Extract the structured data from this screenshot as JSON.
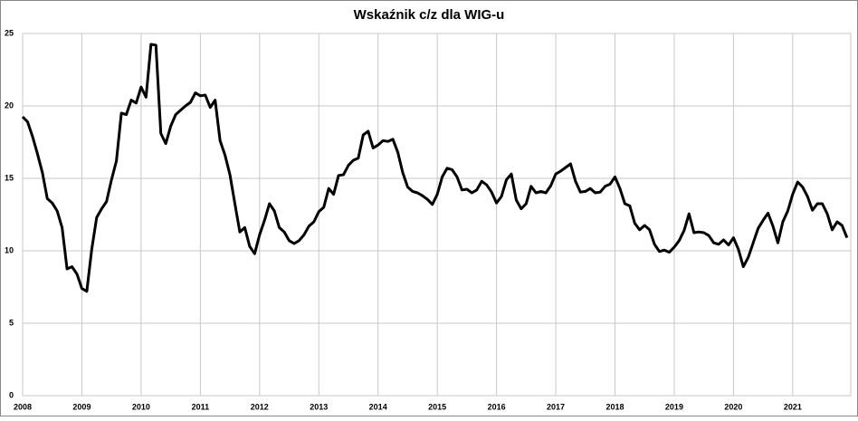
{
  "chart_data": {
    "type": "line",
    "title": "Wskaźnik c/z dla WIG-u",
    "categories": [
      "2008",
      null,
      null,
      null,
      null,
      null,
      null,
      null,
      null,
      null,
      null,
      null,
      "2009",
      null,
      null,
      null,
      null,
      null,
      null,
      null,
      null,
      null,
      null,
      null,
      "2010",
      null,
      null,
      null,
      null,
      null,
      null,
      null,
      null,
      null,
      null,
      null,
      "2011",
      null,
      null,
      null,
      null,
      null,
      null,
      null,
      null,
      null,
      null,
      null,
      "2012",
      null,
      null,
      null,
      null,
      null,
      null,
      null,
      null,
      null,
      null,
      null,
      "2013",
      null,
      null,
      null,
      null,
      null,
      null,
      null,
      null,
      null,
      null,
      null,
      "2014",
      null,
      null,
      null,
      null,
      null,
      null,
      null,
      null,
      null,
      null,
      null,
      "2015",
      null,
      null,
      null,
      null,
      null,
      null,
      null,
      null,
      null,
      null,
      null,
      "2016",
      null,
      null,
      null,
      null,
      null,
      null,
      null,
      null,
      null,
      null,
      null,
      "2017",
      null,
      null,
      null,
      null,
      null,
      null,
      null,
      null,
      null,
      null,
      null,
      "2018",
      null,
      null,
      null,
      null,
      null,
      null,
      null,
      null,
      null,
      null,
      null,
      "2019",
      null,
      null,
      null,
      null,
      null,
      null,
      null,
      null,
      null,
      null,
      null,
      "2020",
      null,
      null,
      null,
      null,
      null,
      null,
      null,
      null,
      null,
      null,
      null,
      "2021",
      null,
      null,
      null,
      null,
      null,
      null,
      null,
      null,
      null,
      null,
      null
    ],
    "values": [
      19.25,
      18.9,
      17.9,
      16.7,
      15.4,
      13.6,
      13.3,
      12.75,
      11.6,
      8.75,
      8.9,
      8.4,
      7.4,
      7.2,
      10.1,
      12.3,
      12.9,
      13.4,
      14.9,
      16.2,
      19.5,
      19.4,
      20.4,
      20.2,
      21.3,
      20.6,
      24.25,
      24.2,
      18.1,
      17.4,
      18.6,
      19.4,
      19.7,
      20.0,
      20.25,
      20.9,
      20.7,
      20.75,
      19.9,
      20.4,
      17.6,
      16.6,
      15.25,
      13.25,
      11.3,
      11.6,
      10.3,
      9.8,
      11.1,
      12.1,
      13.25,
      12.75,
      11.6,
      11.3,
      10.7,
      10.5,
      10.7,
      11.1,
      11.7,
      12.0,
      12.7,
      13.0,
      14.3,
      13.9,
      15.2,
      15.25,
      15.9,
      16.25,
      16.4,
      18.0,
      18.25,
      17.1,
      17.3,
      17.6,
      17.55,
      17.7,
      16.8,
      15.4,
      14.4,
      14.1,
      14.0,
      13.8,
      13.55,
      13.2,
      13.9,
      15.1,
      15.7,
      15.6,
      15.1,
      14.2,
      14.25,
      14.0,
      14.2,
      14.8,
      14.55,
      14.05,
      13.3,
      13.75,
      14.9,
      15.3,
      13.5,
      12.9,
      13.25,
      14.45,
      14.0,
      14.1,
      14.0,
      14.5,
      15.3,
      15.5,
      15.75,
      16.0,
      14.8,
      14.05,
      14.1,
      14.3,
      14.0,
      14.05,
      14.45,
      14.6,
      15.1,
      14.3,
      13.25,
      13.1,
      11.9,
      11.45,
      11.75,
      11.45,
      10.45,
      9.95,
      10.05,
      9.9,
      10.25,
      10.7,
      11.4,
      12.55,
      11.25,
      11.3,
      11.25,
      11.05,
      10.55,
      10.45,
      10.75,
      10.4,
      10.9,
      10.1,
      8.9,
      9.55,
      10.55,
      11.55,
      12.1,
      12.6,
      11.7,
      10.55,
      12.0,
      12.75,
      13.9,
      14.75,
      14.4,
      13.75,
      12.8,
      13.25,
      13.25,
      12.55,
      11.45,
      12.0,
      11.75,
      10.9
    ],
    "color": "#000000",
    "ylim": [
      0,
      25
    ],
    "yticks": [
      0,
      5,
      10,
      15,
      20,
      25
    ],
    "grid": true
  }
}
